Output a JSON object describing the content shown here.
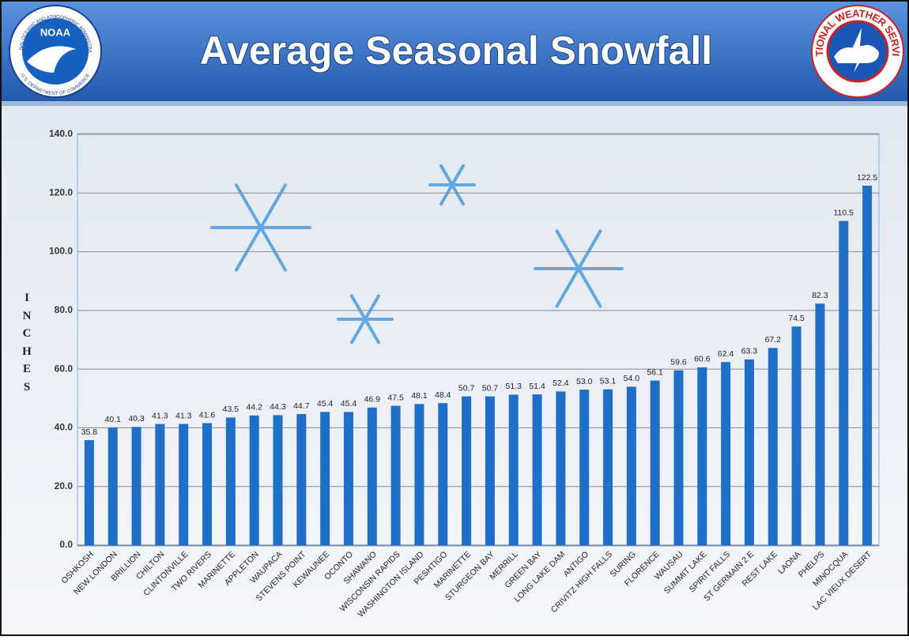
{
  "logos": {
    "noaa": "NOAA",
    "noaa_ring_top": "NATIONAL OCEANIC AND ATMOSPHERIC ADMINISTRATION",
    "noaa_ring_bottom": "U.S. DEPARTMENT OF COMMERCE",
    "nws": "NATIONAL WEATHER SERVICE"
  },
  "chart_data": {
    "type": "bar",
    "title": "Average Seasonal Snowfall",
    "y_label": "INCHES",
    "categories": [
      "OSHKOSH",
      "NEW LONDON",
      "BRILLION",
      "CHILTON",
      "CLINTONVILLE",
      "TWO RIVERS",
      "MARINETTE",
      "APPLETON",
      "WAUPACA",
      "STEVENS POINT",
      "KEWAUNEE",
      "OCONTO",
      "SHAWANO",
      "WISCONSIN RAPIDS",
      "WASHINGTON ISLAND",
      "PESHTIGO",
      "MARINETTE",
      "STURGEON BAY",
      "MERRILL",
      "GREEN BAY",
      "LONG LAKE DAM",
      "ANTIGO",
      "CRIVITZ HIGH FALLS",
      "SURING",
      "FLORENCE",
      "WAUSAU",
      "SUMMIT LAKE",
      "SPIRIT FALLS",
      "ST GERMAIN 2 E",
      "REST LAKE",
      "LAONA",
      "PHELPS",
      "MINOCQUA",
      "LAC VIEUX DESERT"
    ],
    "values": [
      35.8,
      40.1,
      40.3,
      41.3,
      41.3,
      41.6,
      43.5,
      44.2,
      44.3,
      44.7,
      45.4,
      45.4,
      46.9,
      47.5,
      48.1,
      48.4,
      50.7,
      50.7,
      51.3,
      51.4,
      52.4,
      53.0,
      53.1,
      54.0,
      56.1,
      59.6,
      60.6,
      62.4,
      63.3,
      67.2,
      74.5,
      82.3,
      110.5,
      122.5
    ],
    "value_labels": [
      "35.8",
      "40.1",
      "40.3",
      "41.3",
      "41.3",
      "41.6",
      "43.5",
      "44.2",
      "44.3",
      "44.7",
      "45.4",
      "45.4",
      "46.9",
      "47.5",
      "48.1",
      "48.4",
      "50.7",
      "50.7",
      "51.3",
      "51.4",
      "52.4",
      "53.0",
      "53.1",
      "54.0",
      "56.1",
      "59.6",
      "60.6",
      "62.4",
      "63.3",
      "67.2",
      "74.5",
      "82.3",
      "110.5",
      "122.5"
    ],
    "color": "#1f6fc8",
    "ylim": [
      0,
      140
    ],
    "yticks": [
      {
        "value": 0,
        "label": "0.0"
      },
      {
        "value": 20,
        "label": "20.0"
      },
      {
        "value": 40,
        "label": "40.0"
      },
      {
        "value": 60,
        "label": "60.0"
      },
      {
        "value": 80,
        "label": "80.0"
      },
      {
        "value": 100,
        "label": "100.0"
      },
      {
        "value": 120,
        "label": "120.0"
      },
      {
        "value": 140,
        "label": "140.0"
      }
    ],
    "grid": true
  }
}
